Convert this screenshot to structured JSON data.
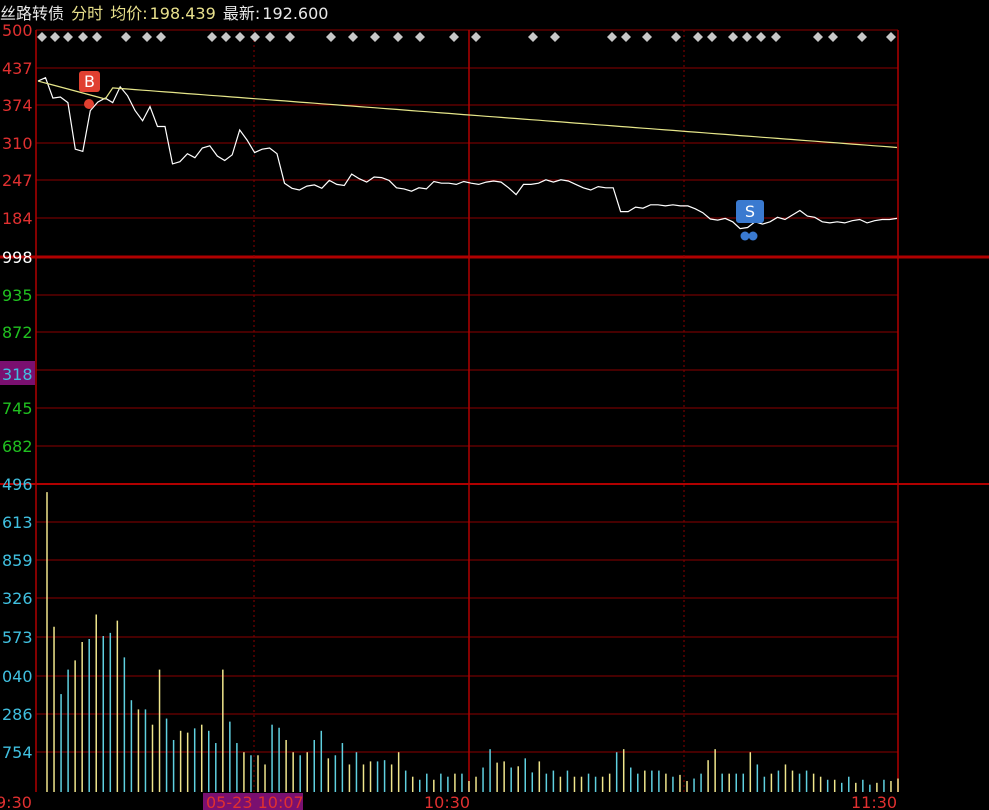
{
  "header": {
    "name": "丝路转债",
    "mode": "分时",
    "avg_label": "均价:",
    "avg_value": "198.439",
    "last_label": "最新:",
    "last_value": "192.600"
  },
  "colors": {
    "grid": "#8b0000",
    "price_line": "#ffffff",
    "avg_line": "#e6e68a",
    "vol_up": "#f0e68c",
    "vol_down": "#5fd0e0",
    "axis_red": "#e03030",
    "axis_green": "#20c020",
    "axis_cyan": "#40c0e0",
    "buy_marker": "#e04030",
    "sell_marker": "#3a7ad0",
    "highlight_bg": "#7a1070"
  },
  "chart_data": {
    "type": "line",
    "price_axis_labels": [
      "500",
      "437",
      "374",
      "310",
      "247",
      "184"
    ],
    "separator_label": "998",
    "mid_axis_labels": [
      "935",
      "872",
      "318",
      "745",
      "682"
    ],
    "mid_highlight_label": "318",
    "volume_axis_labels": [
      "496",
      "613",
      "859",
      "326",
      "573",
      "040",
      "286",
      "754"
    ],
    "x_tick_labels": [
      "9:30",
      "05-23 10:07",
      "10:30",
      "11:30"
    ],
    "x_highlight_label": "05-23 10:07",
    "buy_label": "B",
    "sell_label": "S",
    "price_series": [
      410,
      416,
      380,
      382,
      372,
      290,
      286,
      358,
      373,
      380,
      372,
      400,
      384,
      358,
      340,
      365,
      330,
      330,
      264,
      268,
      282,
      275,
      292,
      296,
      278,
      270,
      280,
      324,
      306,
      284,
      290,
      292,
      282,
      230,
      221,
      218,
      225,
      227,
      221,
      235,
      228,
      226,
      246,
      238,
      232,
      241,
      240,
      235,
      222,
      220,
      216,
      222,
      220,
      233,
      230,
      230,
      228,
      233,
      230,
      228,
      232,
      234,
      232,
      222,
      210,
      228,
      228,
      230,
      236,
      232,
      236,
      234,
      228,
      222,
      218,
      224,
      222,
      222,
      180,
      180,
      188,
      186,
      192,
      192,
      190,
      192,
      190,
      190,
      185,
      178,
      167,
      165,
      168,
      162,
      150,
      152,
      162,
      158,
      162,
      170,
      166,
      174,
      182,
      172,
      170,
      162,
      160,
      162,
      160,
      164,
      166,
      160,
      164,
      166,
      166,
      168
    ],
    "avg_series_start": 398,
    "avg_series_end": 293,
    "volume_series": [
      490,
      270,
      160,
      200,
      215,
      245,
      250,
      290,
      255,
      260,
      280,
      220,
      150,
      135,
      135,
      110,
      200,
      120,
      85,
      100,
      97,
      104,
      110,
      100,
      80,
      200,
      115,
      80,
      65,
      60,
      60,
      45,
      110,
      105,
      85,
      65,
      60,
      65,
      85,
      100,
      55,
      60,
      80,
      45,
      65,
      45,
      50,
      50,
      52,
      45,
      65,
      35,
      25,
      20,
      30,
      20,
      30,
      25,
      30,
      30,
      18,
      25,
      40,
      70,
      48,
      50,
      40,
      42,
      55,
      32,
      50,
      30,
      35,
      25,
      35,
      25,
      25,
      30,
      25,
      25,
      30,
      65,
      70,
      40,
      30,
      35,
      35,
      35,
      30,
      25,
      28,
      18,
      22,
      30,
      52,
      70,
      30,
      30,
      30,
      30,
      65,
      45,
      25,
      30,
      35,
      45,
      35,
      30,
      35,
      30,
      25,
      20,
      20,
      15,
      25,
      15,
      20,
      12,
      15,
      20,
      18,
      22
    ],
    "y_price_range": [
      100,
      500
    ],
    "grid": true
  }
}
